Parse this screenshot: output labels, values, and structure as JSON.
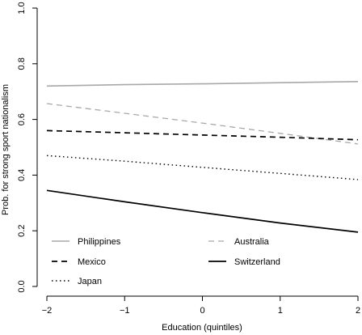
{
  "chart_data": {
    "type": "line",
    "xlabel": "Education (quintiles)",
    "ylabel": "Prob. for strong sport nationalism",
    "xlim": [
      -2,
      2
    ],
    "ylim": [
      0,
      1
    ],
    "x_ticks": [
      -2,
      -1,
      0,
      1,
      2
    ],
    "x_tick_labels": [
      "−2",
      "−1",
      "0",
      "1",
      "2"
    ],
    "y_ticks": [
      0,
      0.2,
      0.4,
      0.6,
      0.8,
      1.0
    ],
    "y_tick_labels": [
      "0.0",
      "0.2",
      "0.4",
      "0.6",
      "0.8",
      "1.0"
    ],
    "grid": false,
    "legend_position": "bottom-left",
    "series": [
      {
        "name": "Philippines",
        "color": "#a8a8a8",
        "style": "solid",
        "width": 1.6,
        "x": [
          -2,
          -1,
          0,
          1,
          2
        ],
        "y": [
          0.72,
          0.725,
          0.728,
          0.732,
          0.736
        ]
      },
      {
        "name": "Australia",
        "color": "#a8a8a8",
        "style": "dashed",
        "width": 1.3,
        "x": [
          -2,
          -1,
          0,
          1,
          2
        ],
        "y": [
          0.657,
          0.622,
          0.587,
          0.55,
          0.512
        ]
      },
      {
        "name": "Mexico",
        "color": "#000000",
        "style": "dashed",
        "width": 1.7,
        "x": [
          -2,
          -1,
          0,
          1,
          2
        ],
        "y": [
          0.56,
          0.552,
          0.544,
          0.536,
          0.527
        ]
      },
      {
        "name": "Switzerland",
        "color": "#000000",
        "style": "solid",
        "width": 1.7,
        "x": [
          -2,
          -1,
          0,
          1,
          2
        ],
        "y": [
          0.345,
          0.304,
          0.265,
          0.228,
          0.195
        ]
      },
      {
        "name": "Japan",
        "color": "#000000",
        "style": "dotted",
        "width": 1.4,
        "x": [
          -2,
          -1,
          0,
          1,
          2
        ],
        "y": [
          0.47,
          0.45,
          0.428,
          0.406,
          0.384
        ]
      }
    ]
  }
}
